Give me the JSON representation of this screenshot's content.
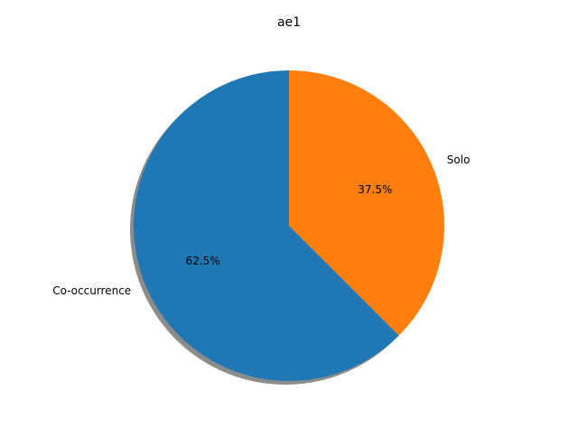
{
  "chart_data": {
    "type": "pie",
    "title": "ae1",
    "labels": [
      "Co-occurrence",
      "Solo"
    ],
    "values": [
      62.5,
      37.5
    ],
    "pct_labels": [
      "62.5%",
      "37.5%"
    ],
    "colors": [
      "#1f77b4",
      "#ff7f0e"
    ],
    "start_angle": 90,
    "counterclock": true,
    "shadow": true
  }
}
